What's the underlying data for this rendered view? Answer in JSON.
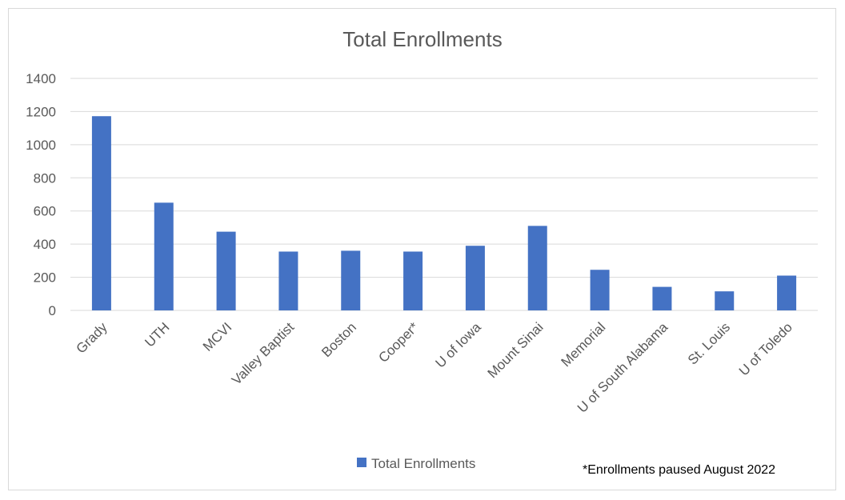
{
  "chart_data": {
    "type": "bar",
    "title": "Total Enrollments",
    "categories": [
      "Grady",
      "UTH",
      "MCVI",
      "Valley Baptist",
      "Boston",
      "Cooper*",
      "U of Iowa",
      "Mount Sinai",
      "Memorial",
      "U of South Alabama",
      "St. Louis",
      "U of Toledo"
    ],
    "series": [
      {
        "name": "Total Enrollments",
        "values": [
          1172,
          650,
          475,
          355,
          360,
          355,
          390,
          510,
          245,
          142,
          115,
          210
        ],
        "color": "#4472c4"
      }
    ],
    "ylim": [
      0,
      1400
    ],
    "yticks": [
      0,
      200,
      400,
      600,
      800,
      1000,
      1200,
      1400
    ],
    "grid": true,
    "legend_position": "bottom",
    "note": "*Enrollments paused August 2022"
  }
}
